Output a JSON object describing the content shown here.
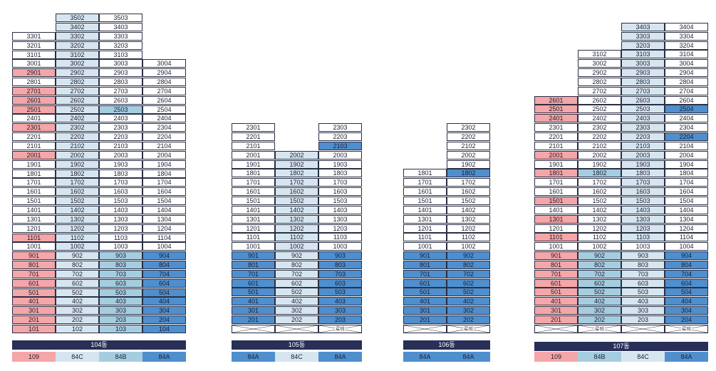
{
  "colors": {
    "white": "#ffffff",
    "light": "#d6e6f0",
    "red": "#f4a6a8",
    "blue": "#4f8fce",
    "mid": "#a5cde0",
    "bar": "#283058"
  },
  "buildings": [
    {
      "name": "104동",
      "type_labels": [
        "109",
        "84C",
        "84B",
        "84A"
      ],
      "type_colors": [
        "r",
        "l",
        "m",
        "b"
      ],
      "columns": [
        [
          "101",
          "201",
          "301",
          "401",
          "501",
          "601",
          "701",
          "801",
          "901",
          "1001",
          "1101",
          "1201",
          "1301",
          "1401",
          "1501",
          "1601",
          "1701",
          "1801",
          "1901",
          "2001",
          "2101",
          "2201",
          "2301",
          "2401",
          "2501",
          "2601",
          "2701",
          "2801",
          "2901",
          "3001",
          "3101",
          "3201",
          "3301"
        ],
        [
          "102",
          "202",
          "302",
          "402",
          "502",
          "602",
          "702",
          "802",
          "902",
          "1002",
          "1102",
          "1202",
          "1302",
          "1402",
          "1502",
          "1602",
          "1702",
          "1802",
          "1902",
          "2002",
          "2102",
          "2202",
          "2302",
          "2402",
          "2502",
          "2602",
          "2702",
          "2802",
          "2902",
          "3002",
          "3102",
          "3202",
          "3302",
          "3402",
          "3502"
        ],
        [
          "103",
          "203",
          "303",
          "403",
          "503",
          "603",
          "703",
          "803",
          "903",
          "1003",
          "1103",
          "1203",
          "1303",
          "1403",
          "1503",
          "1603",
          "1703",
          "1803",
          "1903",
          "2003",
          "2103",
          "2203",
          "2303",
          "2403",
          "2503",
          "2603",
          "2703",
          "2803",
          "2903",
          "3003",
          "3103",
          "3203",
          "3303",
          "3403",
          "3503"
        ],
        [
          "104",
          "204",
          "304",
          "404",
          "504",
          "604",
          "704",
          "804",
          "904",
          "1004",
          "1104",
          "1204",
          "1304",
          "1404",
          "1504",
          "1604",
          "1704",
          "1804",
          "1904",
          "2004",
          "2104",
          "2204",
          "2304",
          "2404",
          "2504",
          "2604",
          "2704",
          "2804",
          "2904",
          "3004"
        ]
      ],
      "highlights": [
        [
          "101",
          "201",
          "301",
          "401",
          "501",
          "601",
          "701",
          "801",
          "901",
          "1101",
          "2001",
          "2301",
          "2501",
          "2601",
          "2701",
          "2901"
        ],
        [
          "102",
          "202",
          "302",
          "402",
          "502",
          "602",
          "702",
          "802",
          "902",
          "1002",
          "1102",
          "1202",
          "1302",
          "1402",
          "1502",
          "1602",
          "1702",
          "1802",
          "1902",
          "2002",
          "2102",
          "2202",
          "2302",
          "2402",
          "2502",
          "2602",
          "2702",
          "2802",
          "2902",
          "3002",
          "3102",
          "3202",
          "3302",
          "3402",
          "3502"
        ],
        [
          "103",
          "203",
          "303",
          "403",
          "503",
          "603",
          "703",
          "803",
          "903",
          "2503"
        ],
        [
          "104",
          "204",
          "304",
          "404",
          "504",
          "604",
          "704",
          "804",
          "904"
        ]
      ],
      "lobby": [
        "",
        "",
        "",
        ""
      ]
    },
    {
      "name": "105동",
      "type_labels": [
        "84A",
        "84C",
        "84A"
      ],
      "type_colors": [
        "b",
        "l",
        "b"
      ],
      "columns": [
        [
          "201",
          "301",
          "401",
          "501",
          "601",
          "701",
          "801",
          "901",
          "1001",
          "1101",
          "1201",
          "1301",
          "1401",
          "1501",
          "1601",
          "1701",
          "1801",
          "1901",
          "2001",
          "2101",
          "2201",
          "2301"
        ],
        [
          "202",
          "302",
          "402",
          "502",
          "602",
          "702",
          "802",
          "902",
          "1002",
          "1102",
          "1202",
          "1302",
          "1402",
          "1502",
          "1602",
          "1702",
          "1802",
          "1902",
          "2002"
        ],
        [
          "203",
          "303",
          "403",
          "503",
          "603",
          "703",
          "803",
          "903",
          "1003",
          "1103",
          "1203",
          "1303",
          "1403",
          "1503",
          "1603",
          "1703",
          "1803",
          "1903",
          "2003",
          "2103",
          "2203",
          "2303"
        ]
      ],
      "highlights": [
        [
          "201",
          "301",
          "401",
          "501",
          "601",
          "701",
          "801",
          "901"
        ],
        [
          "202",
          "302",
          "402",
          "502",
          "602",
          "702",
          "802",
          "902",
          "1002",
          "1102",
          "1202",
          "1302",
          "1402",
          "1502",
          "1602",
          "1702",
          "1802",
          "1902",
          "2002"
        ],
        [
          "203",
          "303",
          "403",
          "503",
          "603",
          "703",
          "803",
          "903",
          "2103"
        ]
      ],
      "lobby": [
        "",
        "",
        "로비"
      ]
    },
    {
      "name": "106동",
      "type_labels": [
        "84A",
        "84A"
      ],
      "type_colors": [
        "b",
        "b"
      ],
      "columns": [
        [
          "201",
          "301",
          "401",
          "501",
          "601",
          "701",
          "801",
          "901",
          "1001",
          "1101",
          "1201",
          "1301",
          "1401",
          "1501",
          "1601",
          "1701",
          "1801"
        ],
        [
          "202",
          "302",
          "402",
          "502",
          "602",
          "702",
          "802",
          "902",
          "1002",
          "1102",
          "1202",
          "1302",
          "1402",
          "1502",
          "1602",
          "1702",
          "1802",
          "1902",
          "2002",
          "2102",
          "2202",
          "2302"
        ]
      ],
      "highlights": [
        [
          "201",
          "301",
          "401",
          "501",
          "601",
          "701",
          "801",
          "901"
        ],
        [
          "202",
          "302",
          "402",
          "502",
          "602",
          "702",
          "802",
          "902",
          "1802"
        ]
      ],
      "lobby": [
        "",
        "로비"
      ]
    },
    {
      "name": "107동",
      "type_labels": [
        "109",
        "84B",
        "84C",
        "84A"
      ],
      "type_colors": [
        "r",
        "m",
        "l",
        "b"
      ],
      "columns": [
        [
          "201",
          "301",
          "401",
          "501",
          "601",
          "701",
          "801",
          "901",
          "1001",
          "1101",
          "1201",
          "1301",
          "1401",
          "1501",
          "1601",
          "1701",
          "1801",
          "1901",
          "2001",
          "2101",
          "2201",
          "2301",
          "2401",
          "2501",
          "2601"
        ],
        [
          "202",
          "302",
          "402",
          "502",
          "602",
          "702",
          "802",
          "902",
          "1002",
          "1102",
          "1202",
          "1302",
          "1402",
          "1502",
          "1602",
          "1702",
          "1802",
          "1902",
          "2002",
          "2102",
          "2202",
          "2302",
          "2402",
          "2502",
          "2602",
          "2702",
          "2802",
          "2902",
          "3002",
          "3102"
        ],
        [
          "203",
          "303",
          "403",
          "503",
          "603",
          "703",
          "803",
          "903",
          "1003",
          "1103",
          "1203",
          "1303",
          "1403",
          "1503",
          "1603",
          "1703",
          "1803",
          "1903",
          "2003",
          "2103",
          "2203",
          "2303",
          "2403",
          "2503",
          "2603",
          "2703",
          "2803",
          "2903",
          "3003",
          "3103",
          "3203",
          "3303",
          "3403"
        ],
        [
          "204",
          "304",
          "404",
          "504",
          "604",
          "704",
          "804",
          "904",
          "1004",
          "1104",
          "1204",
          "1304",
          "1404",
          "1504",
          "1604",
          "1704",
          "1804",
          "1904",
          "2004",
          "2104",
          "2204",
          "2304",
          "2404",
          "2504",
          "2604",
          "2704",
          "2804",
          "2904",
          "3004",
          "3104",
          "3204",
          "3304",
          "3404"
        ]
      ],
      "highlights": [
        [
          "201",
          "301",
          "401",
          "501",
          "601",
          "701",
          "801",
          "901",
          "1101",
          "1301",
          "1501",
          "1801",
          "2001",
          "2401",
          "2501",
          "2601"
        ],
        [
          "202",
          "302",
          "402",
          "502",
          "602",
          "702",
          "802",
          "902",
          "1802"
        ],
        [
          "203",
          "303",
          "403",
          "503",
          "603",
          "703",
          "803",
          "903",
          "1103",
          "1203",
          "1303",
          "1403",
          "1503",
          "1603",
          "1703",
          "1803",
          "1903",
          "2003",
          "2103",
          "2203",
          "2303",
          "2403",
          "2503",
          "2603",
          "2703",
          "2803",
          "2903",
          "3003",
          "3103",
          "3203",
          "3303",
          "3403"
        ],
        [
          "204",
          "304",
          "404",
          "504",
          "604",
          "704",
          "804",
          "904",
          "2204",
          "2504"
        ]
      ],
      "lobby": [
        "",
        "로비",
        "",
        "로비"
      ]
    }
  ]
}
